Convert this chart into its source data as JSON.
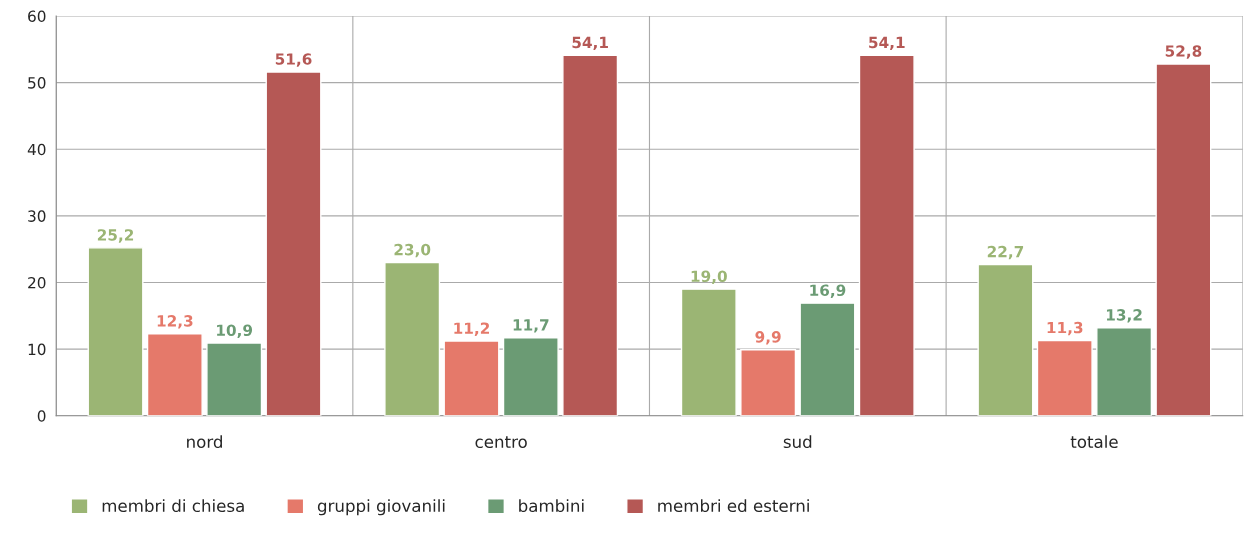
{
  "chart_data": {
    "type": "bar",
    "categories": [
      "nord",
      "centro",
      "sud",
      "totale"
    ],
    "series": [
      {
        "name": "membri di chiesa",
        "color": "#9bb574",
        "values": [
          25.2,
          23.0,
          19.0,
          22.7
        ],
        "value_labels": [
          "25,2",
          "23,0",
          "19,0",
          "22,7"
        ]
      },
      {
        "name": "gruppi giovanili",
        "color": "#e5796a",
        "values": [
          12.3,
          11.2,
          9.9,
          11.3
        ],
        "value_labels": [
          "12,3",
          "11,2",
          "9,9",
          "11,3"
        ]
      },
      {
        "name": "bambini",
        "color": "#6b9b74",
        "values": [
          10.9,
          11.7,
          16.9,
          13.2
        ],
        "value_labels": [
          "10,9",
          "11,7",
          "16,9",
          "13,2"
        ]
      },
      {
        "name": "membri ed esterni",
        "color": "#b55855",
        "values": [
          51.6,
          54.1,
          54.1,
          52.8
        ],
        "value_labels": [
          "51,6",
          "54,1",
          "54,1",
          "52,8"
        ]
      }
    ],
    "ylim": [
      0,
      60
    ],
    "yticks": [
      0,
      10,
      20,
      30,
      40,
      50,
      60
    ],
    "grid": true,
    "legend": "bottom left"
  }
}
